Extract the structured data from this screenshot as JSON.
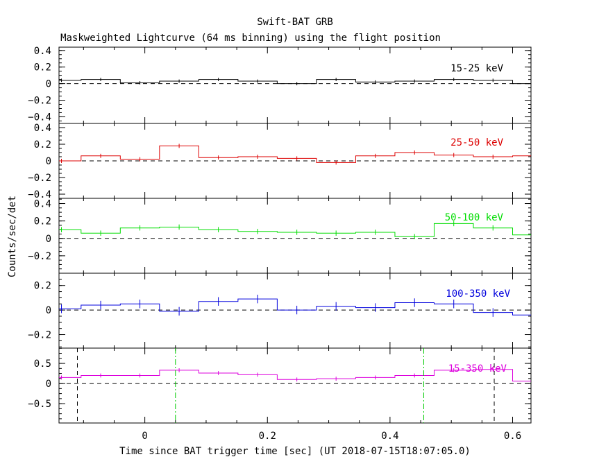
{
  "title": "Swift-BAT GRB",
  "subtitle": "Maskweighted Lightcurve (64 ms binning) using the flight position",
  "xlabel": "Time since BAT trigger time [sec] (UT 2018-07-15T18:07:05.0)",
  "ylabel": "Counts/sec/det",
  "chart_data": {
    "type": "line",
    "style": "step with error bars",
    "title": "Swift-BAT GRB",
    "subtitle": "Maskweighted Lightcurve (64 ms binning) using the flight position",
    "xlabel": "Time since BAT trigger time [sec] (UT 2018-07-15T18:07:05.0)",
    "ylabel": "Counts/sec/det",
    "xlim": [
      -0.14,
      0.63
    ],
    "xticks": [
      0,
      0.2,
      0.4,
      0.6
    ],
    "xtick_labels": [
      "0",
      "0.2",
      "0.4",
      "0.6"
    ],
    "bin_width": 0.064,
    "bin_centers": [
      -0.136,
      -0.072,
      -0.008,
      0.056,
      0.12,
      0.184,
      0.248,
      0.312,
      0.376,
      0.44,
      0.504,
      0.568,
      0.632
    ],
    "panels": [
      {
        "name": "15-25 keV",
        "color": "#000000",
        "ylim": [
          -0.48,
          0.44
        ],
        "yticks": [
          -0.4,
          -0.2,
          0,
          0.2,
          0.4
        ],
        "ytick_labels": [
          "−0.4",
          "−0.2",
          "0",
          "0.2",
          "0.4"
        ],
        "values": [
          0.04,
          0.05,
          0.01,
          0.03,
          0.05,
          0.03,
          0.0,
          0.05,
          0.02,
          0.03,
          0.05,
          0.04,
          0.0
        ],
        "errors": [
          0.02,
          0.02,
          0.02,
          0.02,
          0.02,
          0.02,
          0.02,
          0.02,
          0.02,
          0.02,
          0.02,
          0.02,
          0.02
        ]
      },
      {
        "name": "25-50 keV",
        "color": "#dd0000",
        "ylim": [
          -0.45,
          0.45
        ],
        "yticks": [
          -0.4,
          -0.2,
          0,
          0.2,
          0.4
        ],
        "ytick_labels": [
          "−0.4",
          "−0.2",
          "0",
          "0.2",
          "0.4"
        ],
        "values": [
          0.0,
          0.06,
          0.02,
          0.18,
          0.04,
          0.05,
          0.03,
          -0.02,
          0.06,
          0.1,
          0.07,
          0.05,
          0.06
        ],
        "errors": [
          0.025,
          0.025,
          0.025,
          0.025,
          0.025,
          0.025,
          0.025,
          0.025,
          0.025,
          0.025,
          0.025,
          0.025,
          0.025
        ]
      },
      {
        "name": "50-100 keV",
        "color": "#00dd00",
        "ylim": [
          -0.4,
          0.46
        ],
        "yticks": [
          -0.2,
          0,
          0.2,
          0.4
        ],
        "ytick_labels": [
          "−0.2",
          "0",
          "0.2",
          "0.4"
        ],
        "values": [
          0.1,
          0.06,
          0.12,
          0.13,
          0.1,
          0.08,
          0.07,
          0.06,
          0.07,
          0.02,
          0.17,
          0.12,
          0.04
        ],
        "errors": [
          0.03,
          0.03,
          0.03,
          0.03,
          0.03,
          0.03,
          0.03,
          0.03,
          0.03,
          0.03,
          0.03,
          0.03,
          0.03
        ]
      },
      {
        "name": "100-350 keV",
        "color": "#0000dd",
        "ylim": [
          -0.31,
          0.3
        ],
        "yticks": [
          -0.2,
          0,
          0.2
        ],
        "ytick_labels": [
          "−0.2",
          "0",
          "0.2"
        ],
        "values": [
          0.01,
          0.04,
          0.05,
          -0.01,
          0.07,
          0.09,
          0.0,
          0.03,
          0.02,
          0.06,
          0.05,
          -0.02,
          -0.04
        ],
        "errors": [
          0.035,
          0.035,
          0.035,
          0.035,
          0.035,
          0.035,
          0.035,
          0.035,
          0.035,
          0.035,
          0.035,
          0.035,
          0.035
        ]
      },
      {
        "name": "15-350 keV",
        "color": "#dd00dd",
        "ylim": [
          -0.98,
          0.88
        ],
        "yticks": [
          -0.5,
          0,
          0.5
        ],
        "ytick_labels": [
          "−0.5",
          "0",
          "0.5"
        ],
        "values": [
          0.15,
          0.2,
          0.2,
          0.33,
          0.26,
          0.22,
          0.1,
          0.12,
          0.15,
          0.2,
          0.33,
          0.35,
          0.06
        ],
        "errors": [
          0.05,
          0.05,
          0.05,
          0.05,
          0.05,
          0.05,
          0.05,
          0.05,
          0.05,
          0.05,
          0.05,
          0.05,
          0.05
        ]
      }
    ],
    "vertical_lines": [
      {
        "x": -0.11,
        "style": "dashed",
        "color": "#000000"
      },
      {
        "x": 0.05,
        "style": "dashdot",
        "color": "#00cc00"
      },
      {
        "x": 0.455,
        "style": "dashdot",
        "color": "#00cc00"
      },
      {
        "x": 0.57,
        "style": "dashed",
        "color": "#000000"
      }
    ],
    "grid": false,
    "legend": "none"
  }
}
